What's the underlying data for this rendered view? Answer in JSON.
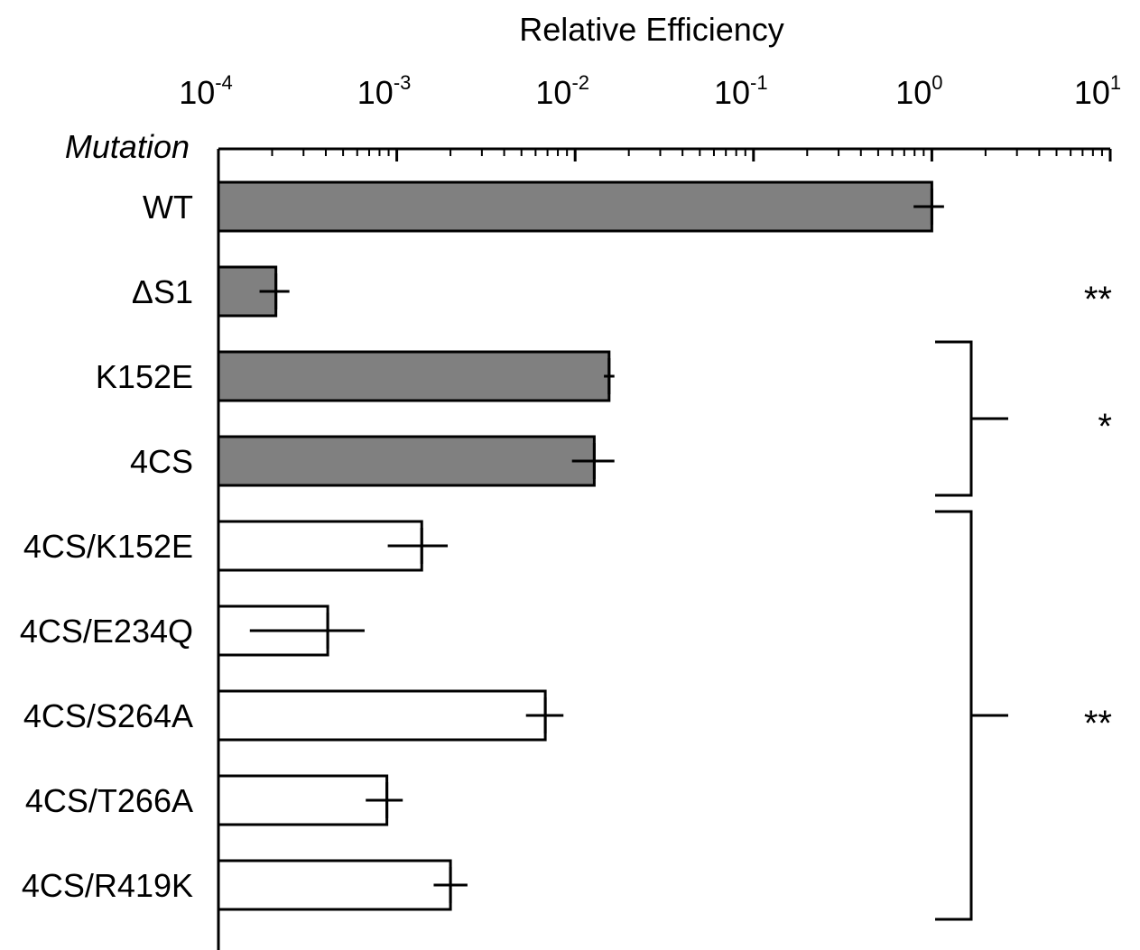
{
  "chart_data": {
    "type": "bar",
    "orientation": "horizontal",
    "title": "Relative Efficiency",
    "category_header": "Mutation",
    "x_scale": "log",
    "xlim": [
      0.0001,
      10
    ],
    "x_ticks": [
      {
        "base": "10",
        "exp": "-4",
        "value": 0.0001
      },
      {
        "base": "10",
        "exp": "-3",
        "value": 0.001
      },
      {
        "base": "10",
        "exp": "-2",
        "value": 0.01
      },
      {
        "base": "10",
        "exp": "-1",
        "value": 0.1
      },
      {
        "base": "10",
        "exp": "0",
        "value": 1
      },
      {
        "base": "10",
        "exp": "1",
        "value": 10
      }
    ],
    "categories": [
      "WT",
      "ΔS1",
      "K152E",
      "4CS",
      "4CS/K152E",
      "4CS/E234Q",
      "4CS/S264A",
      "4CS/T266A",
      "4CS/R419K"
    ],
    "values": [
      1.0,
      0.00021,
      0.0155,
      0.0128,
      0.00138,
      0.00041,
      0.0068,
      0.00088,
      0.002
    ],
    "err_low": [
      0.79,
      0.00017,
      0.0145,
      0.0096,
      0.00089,
      0.00015,
      0.0053,
      0.00067,
      0.00161
    ],
    "err_high": [
      1.17,
      0.00025,
      0.0166,
      0.0166,
      0.00193,
      0.00066,
      0.0086,
      0.00108,
      0.00249
    ],
    "bar_colors": [
      "#808080",
      "#808080",
      "#808080",
      "#808080",
      "#ffffff",
      "#ffffff",
      "#ffffff",
      "#ffffff",
      "#ffffff"
    ],
    "significance": [
      {
        "label": "**",
        "rows": [
          1,
          1
        ],
        "bracket": false
      },
      {
        "label": "*",
        "rows": [
          2,
          3
        ],
        "bracket": true
      },
      {
        "label": "**",
        "rows": [
          4,
          8
        ],
        "bracket": true
      }
    ]
  }
}
